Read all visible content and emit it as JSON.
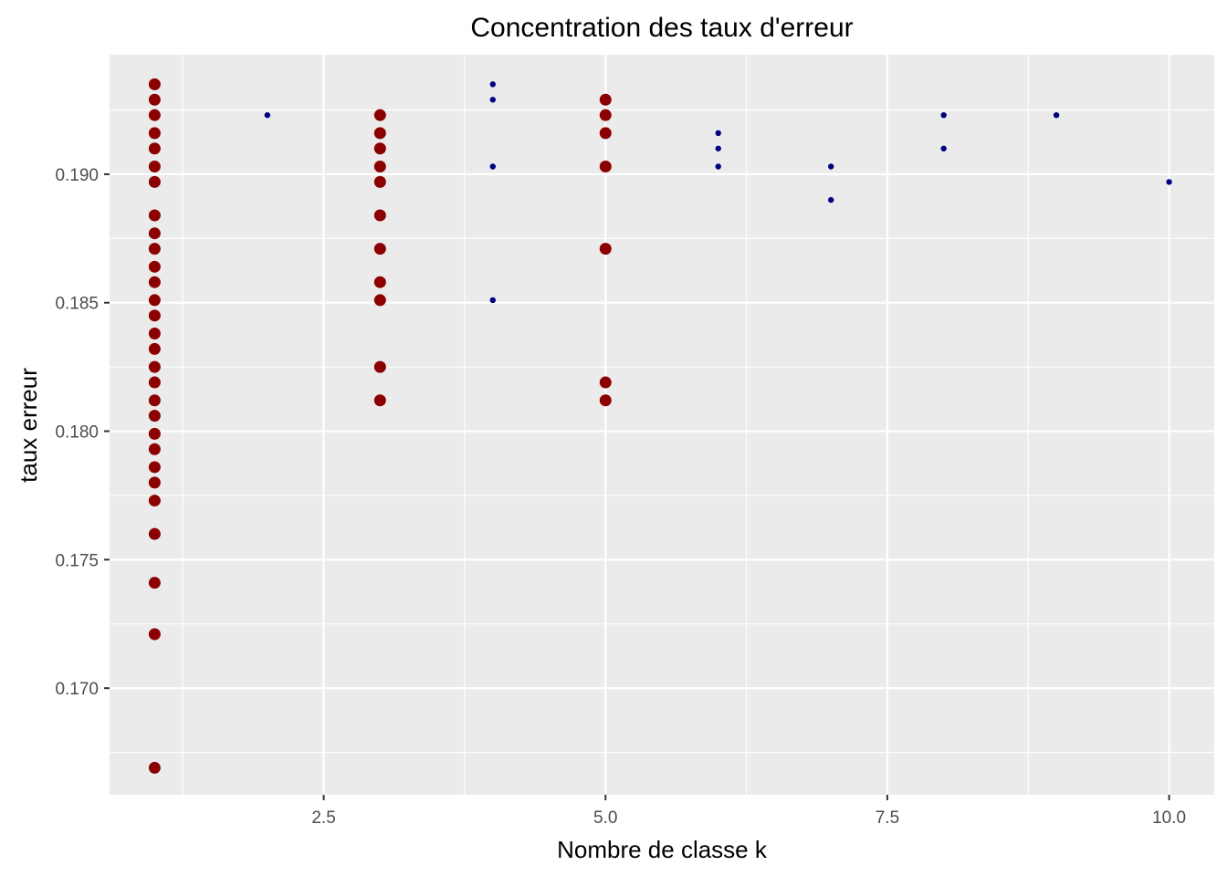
{
  "chart_data": {
    "type": "scatter",
    "title": "Concentration des taux d'erreur",
    "xlabel": "Nombre de classe k",
    "ylabel": "taux erreur",
    "xlim": [
      0.6,
      10.4
    ],
    "ylim": [
      0.16585,
      0.19465
    ],
    "x_ticks": [
      2.5,
      5.0,
      7.5,
      10.0
    ],
    "x_tick_labels": [
      "2.5",
      "5.0",
      "7.5",
      "10.0"
    ],
    "y_ticks": [
      0.17,
      0.175,
      0.18,
      0.185,
      0.19
    ],
    "y_tick_labels": [
      "0.170",
      "0.175",
      "0.180",
      "0.185",
      "0.190"
    ],
    "grid": true,
    "panel_background": "#ebebeb",
    "grid_color": "#ffffff",
    "legend": "none",
    "series": [
      {
        "color": "#8b0000",
        "marker_size": "large",
        "points": [
          [
            1,
            0.1935
          ],
          [
            1,
            0.1929
          ],
          [
            1,
            0.1923
          ],
          [
            1,
            0.1916
          ],
          [
            1,
            0.191
          ],
          [
            1,
            0.1903
          ],
          [
            1,
            0.1897
          ],
          [
            1,
            0.1884
          ],
          [
            1,
            0.1877
          ],
          [
            1,
            0.1871
          ],
          [
            1,
            0.1864
          ],
          [
            1,
            0.1858
          ],
          [
            1,
            0.1851
          ],
          [
            1,
            0.1845
          ],
          [
            1,
            0.1838
          ],
          [
            1,
            0.1832
          ],
          [
            1,
            0.1825
          ],
          [
            1,
            0.1819
          ],
          [
            1,
            0.1812
          ],
          [
            1,
            0.1806
          ],
          [
            1,
            0.1799
          ],
          [
            1,
            0.1793
          ],
          [
            1,
            0.1786
          ],
          [
            1,
            0.178
          ],
          [
            1,
            0.1773
          ],
          [
            1,
            0.176
          ],
          [
            1,
            0.1741
          ],
          [
            1,
            0.1721
          ],
          [
            1,
            0.1669
          ],
          [
            3,
            0.1923
          ],
          [
            3,
            0.1916
          ],
          [
            3,
            0.191
          ],
          [
            3,
            0.1903
          ],
          [
            3,
            0.1897
          ],
          [
            3,
            0.1884
          ],
          [
            3,
            0.1871
          ],
          [
            3,
            0.1858
          ],
          [
            3,
            0.1851
          ],
          [
            3,
            0.1825
          ],
          [
            3,
            0.1812
          ],
          [
            5,
            0.1929
          ],
          [
            5,
            0.1923
          ],
          [
            5,
            0.1916
          ],
          [
            5,
            0.1903
          ],
          [
            5,
            0.1871
          ],
          [
            5,
            0.1819
          ],
          [
            5,
            0.1812
          ]
        ]
      },
      {
        "color": "#000080",
        "marker_size": "small",
        "points": [
          [
            2,
            0.1923
          ],
          [
            4,
            0.1935
          ],
          [
            4,
            0.1929
          ],
          [
            4,
            0.1903
          ],
          [
            4,
            0.1851
          ],
          [
            6,
            0.1916
          ],
          [
            6,
            0.191
          ],
          [
            6,
            0.1903
          ],
          [
            7,
            0.1903
          ],
          [
            7,
            0.189
          ],
          [
            8,
            0.1923
          ],
          [
            8,
            0.191
          ],
          [
            9,
            0.1923
          ],
          [
            10,
            0.1897
          ]
        ]
      }
    ]
  }
}
